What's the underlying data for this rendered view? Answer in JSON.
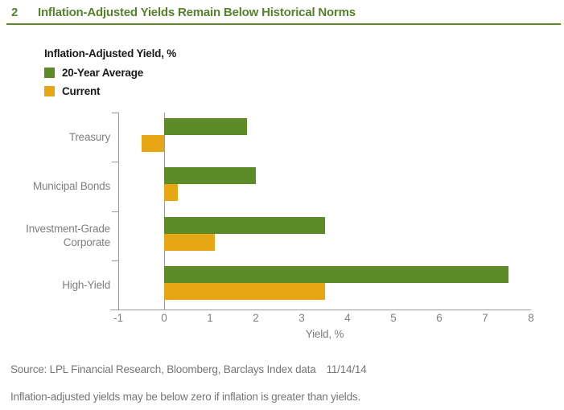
{
  "header": {
    "figure_number": "2",
    "title": "Inflation-Adjusted Yields Remain Below Historical Norms"
  },
  "legend": {
    "title": "Inflation-Adjusted Yield, %",
    "items": [
      {
        "label": "20-Year Average",
        "color": "#5d8b28"
      },
      {
        "label": "Current",
        "color": "#e7a614"
      }
    ]
  },
  "chart_data": {
    "type": "bar",
    "orientation": "horizontal",
    "title": "Inflation-Adjusted Yields Remain Below Historical Norms",
    "categories": [
      "Treasury",
      "Municipal Bonds",
      "Investment-Grade Corporate",
      "High-Yield"
    ],
    "series": [
      {
        "name": "20-Year Average",
        "color": "#5d8b28",
        "values": [
          1.8,
          2.0,
          3.5,
          7.5
        ]
      },
      {
        "name": "Current",
        "color": "#e7a614",
        "values": [
          -0.5,
          0.3,
          1.1,
          3.5
        ]
      }
    ],
    "xlabel": "Yield, %",
    "xlim": [
      -1,
      8
    ],
    "xticks": [
      -1,
      0,
      1,
      2,
      3,
      4,
      5,
      6,
      7,
      8
    ],
    "grid": false,
    "legend_position": "top-left",
    "axis_color": "#999999",
    "label_color": "#7f7f7f"
  },
  "footer": {
    "source": "Source: LPL Financial Research, Bloomberg, Barclays Index data",
    "date": "11/14/14",
    "note": "Inflation-adjusted yields may be below zero if inflation is greater than yields."
  }
}
